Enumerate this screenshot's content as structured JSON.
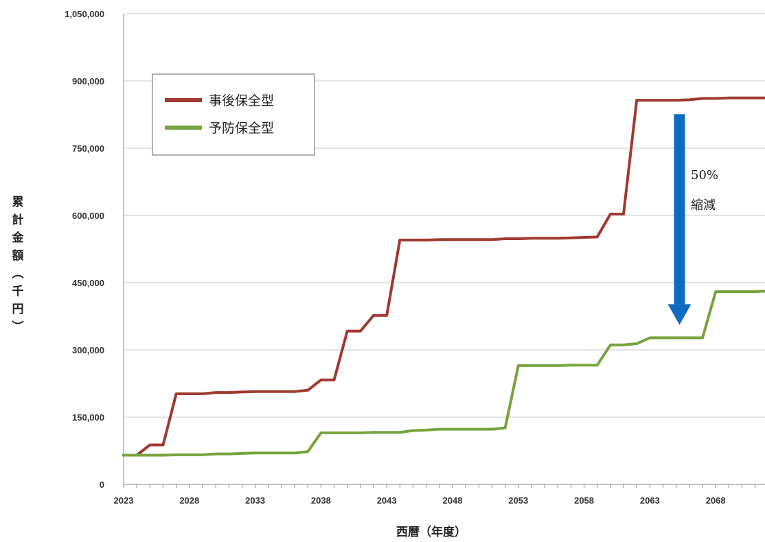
{
  "chart_data": {
    "type": "line",
    "xlabel": "西暦（年度）",
    "ylabel": "累計金額（千円）",
    "x_ticks": [
      "2023",
      "2028",
      "2033",
      "2038",
      "2043",
      "2048",
      "2053",
      "2058",
      "2063",
      "2068"
    ],
    "y_ticks": [
      "0",
      "150,000",
      "300,000",
      "450,000",
      "600,000",
      "750,000",
      "900,000",
      "1,050,000"
    ],
    "xlim": [
      2023,
      2071.75
    ],
    "ylim": [
      0,
      1050000
    ],
    "grid": true,
    "legend_position": "top-left",
    "series": [
      {
        "name": "事後保全型",
        "color": "#a0392f",
        "points": [
          [
            2023,
            65000
          ],
          [
            2024,
            65000
          ],
          [
            2025,
            88000
          ],
          [
            2026,
            88000
          ],
          [
            2027,
            202000
          ],
          [
            2028,
            202000
          ],
          [
            2029,
            202000
          ],
          [
            2030,
            205000
          ],
          [
            2031,
            205000
          ],
          [
            2032,
            206000
          ],
          [
            2033,
            207000
          ],
          [
            2034,
            207000
          ],
          [
            2035,
            207000
          ],
          [
            2036,
            207000
          ],
          [
            2037,
            210000
          ],
          [
            2038,
            233000
          ],
          [
            2039,
            233000
          ],
          [
            2040,
            342000
          ],
          [
            2041,
            342000
          ],
          [
            2042,
            377000
          ],
          [
            2043,
            377000
          ],
          [
            2044,
            545000
          ],
          [
            2045,
            545000
          ],
          [
            2046,
            545000
          ],
          [
            2047,
            546000
          ],
          [
            2048,
            546000
          ],
          [
            2049,
            546000
          ],
          [
            2050,
            546000
          ],
          [
            2051,
            546000
          ],
          [
            2052,
            548000
          ],
          [
            2053,
            548000
          ],
          [
            2054,
            549000
          ],
          [
            2055,
            549000
          ],
          [
            2056,
            549000
          ],
          [
            2057,
            550000
          ],
          [
            2058,
            551000
          ],
          [
            2059,
            552000
          ],
          [
            2060,
            603000
          ],
          [
            2061,
            603000
          ],
          [
            2062,
            857000
          ],
          [
            2063,
            857000
          ],
          [
            2064,
            857000
          ],
          [
            2065,
            857000
          ],
          [
            2066,
            858000
          ],
          [
            2067,
            861000
          ],
          [
            2068,
            861000
          ],
          [
            2069,
            862000
          ],
          [
            2070,
            862000
          ],
          [
            2071,
            862000
          ],
          [
            2071.75,
            862000
          ]
        ]
      },
      {
        "name": "予防保全型",
        "color": "#77a33d",
        "points": [
          [
            2023,
            65000
          ],
          [
            2024,
            65000
          ],
          [
            2025,
            65000
          ],
          [
            2026,
            65000
          ],
          [
            2027,
            66000
          ],
          [
            2028,
            66000
          ],
          [
            2029,
            66000
          ],
          [
            2030,
            68000
          ],
          [
            2031,
            68000
          ],
          [
            2032,
            69000
          ],
          [
            2033,
            70000
          ],
          [
            2034,
            70000
          ],
          [
            2035,
            70000
          ],
          [
            2036,
            70000
          ],
          [
            2037,
            73000
          ],
          [
            2038,
            115000
          ],
          [
            2039,
            115000
          ],
          [
            2040,
            115000
          ],
          [
            2041,
            115000
          ],
          [
            2042,
            116000
          ],
          [
            2043,
            116000
          ],
          [
            2044,
            116000
          ],
          [
            2045,
            120000
          ],
          [
            2046,
            121000
          ],
          [
            2047,
            123000
          ],
          [
            2048,
            123000
          ],
          [
            2049,
            123000
          ],
          [
            2050,
            123000
          ],
          [
            2051,
            123000
          ],
          [
            2052,
            126000
          ],
          [
            2053,
            265000
          ],
          [
            2054,
            265000
          ],
          [
            2055,
            265000
          ],
          [
            2056,
            265000
          ],
          [
            2057,
            266000
          ],
          [
            2058,
            266000
          ],
          [
            2059,
            266000
          ],
          [
            2060,
            311000
          ],
          [
            2061,
            311000
          ],
          [
            2062,
            314000
          ],
          [
            2063,
            327000
          ],
          [
            2064,
            327000
          ],
          [
            2065,
            327000
          ],
          [
            2066,
            327000
          ],
          [
            2067,
            327000
          ],
          [
            2068,
            430000
          ],
          [
            2069,
            430000
          ],
          [
            2070,
            430000
          ],
          [
            2071,
            430000
          ],
          [
            2071.75,
            431000
          ]
        ]
      }
    ],
    "annotations": [
      {
        "text": "50%"
      },
      {
        "text": "縮減"
      }
    ],
    "arrow": {
      "from_value": 826000,
      "to_value": 356000,
      "color": "#0e6bc2"
    }
  }
}
